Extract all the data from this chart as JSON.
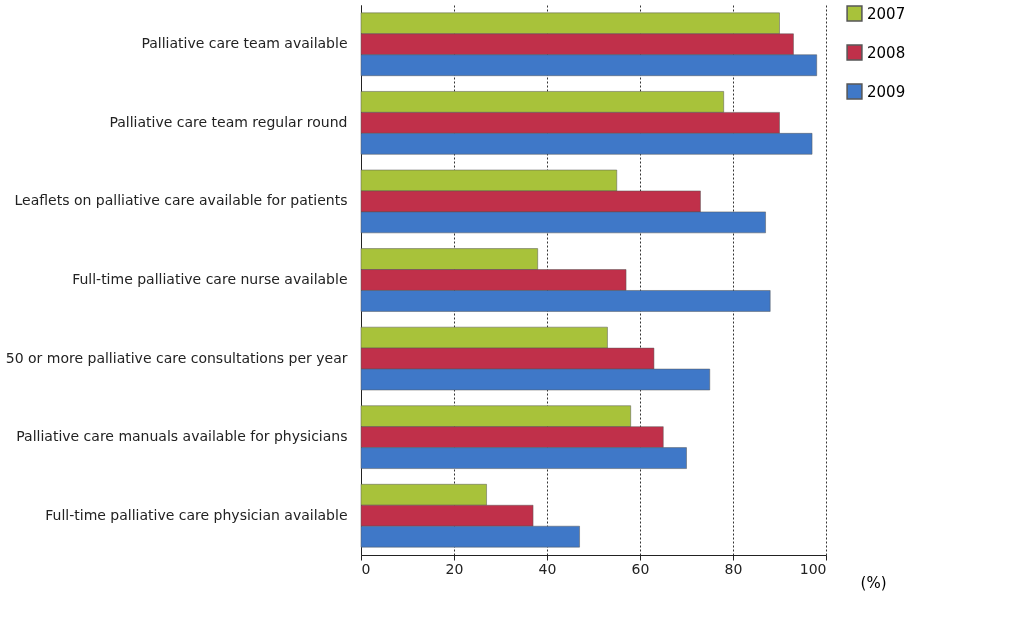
{
  "chart_data": {
    "type": "bar",
    "orientation": "horizontal",
    "xlabel": "(%)",
    "categories": [
      "Palliative care team available",
      "Palliative care team regular round",
      "Leaflets on palliative care available for patients",
      "Full-time palliative care nurse available",
      "50 or more palliative care consultations per year",
      "Palliative care manuals available for physicians",
      "Full-time palliative care physician available"
    ],
    "series": [
      {
        "name": "2007",
        "color": "#a8c23a",
        "values": [
          90,
          78,
          55,
          38,
          53,
          58,
          27
        ]
      },
      {
        "name": "2008",
        "color": "#c0304a",
        "values": [
          93,
          90,
          73,
          57,
          63,
          65,
          37
        ]
      },
      {
        "name": "2009",
        "color": "#3f78c8",
        "values": [
          98,
          97,
          87,
          88,
          75,
          70,
          47
        ]
      }
    ],
    "xlim": [
      0,
      100
    ],
    "xticks": [
      0,
      20,
      40,
      60,
      80,
      100
    ],
    "grid": "x",
    "legend": "right"
  }
}
